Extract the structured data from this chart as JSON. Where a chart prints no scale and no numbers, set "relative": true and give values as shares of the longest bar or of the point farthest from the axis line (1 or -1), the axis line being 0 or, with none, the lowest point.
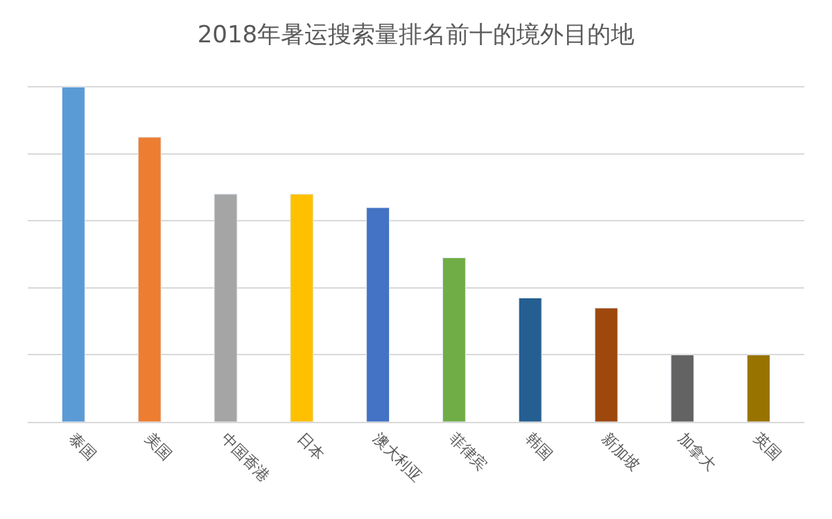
{
  "chart_data": {
    "type": "bar",
    "title": "2018年暑运搜索量排名前十的境外目的地",
    "categories": [
      "泰国",
      "美国",
      "中国香港",
      "日本",
      "澳大利亚",
      "菲律宾",
      "韩国",
      "新加坡",
      "加拿大",
      "英国"
    ],
    "values": [
      1,
      0.85,
      0.68,
      0.68,
      0.64,
      0.49,
      0.37,
      0.34,
      0.2,
      0.2
    ],
    "colors": [
      "#5b9bd5",
      "#ed7d31",
      "#a5a5a5",
      "#ffc000",
      "#4472c4",
      "#70ad47",
      "#255e91",
      "#9e480e",
      "#636363",
      "#997300"
    ],
    "relative": true,
    "grid": "y"
  }
}
